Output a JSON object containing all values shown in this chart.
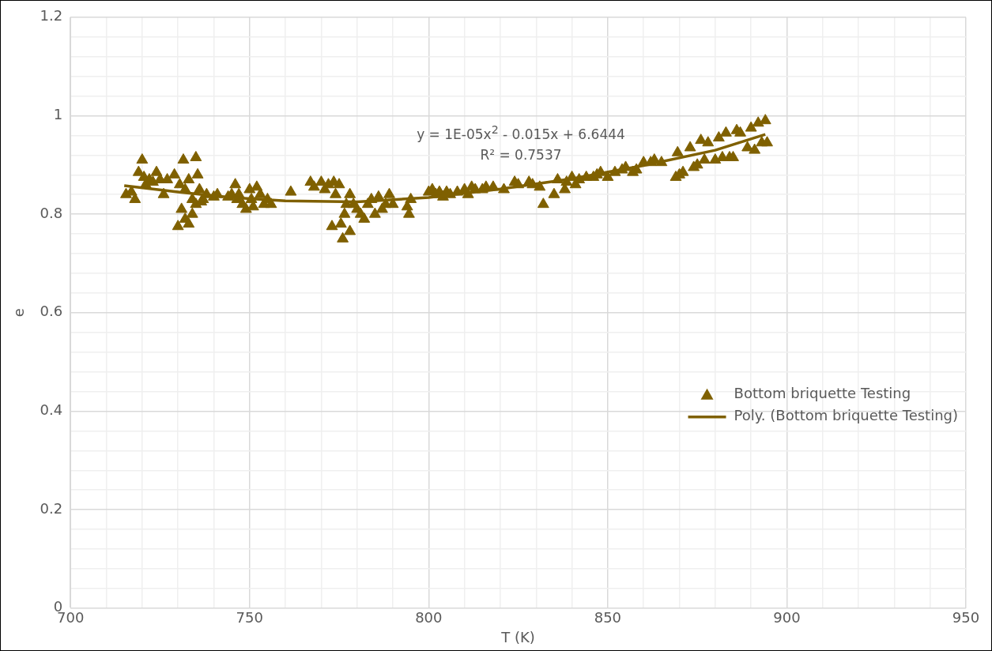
{
  "chart_data": {
    "type": "scatter",
    "xlabel": "T (K)",
    "ylabel": "e",
    "annotations": [
      "y = 1E-05x$^{2}$ - 0.015x + 6.6444",
      "R² = 0.7537"
    ],
    "xlim": [
      700,
      950
    ],
    "ylim": [
      0,
      1.2
    ],
    "xticks": [
      700,
      {
        "value": 710,
        "label": null
      },
      {
        "value": 720,
        "label": null
      },
      {
        "value": 730,
        "label": null
      },
      {
        "value": 740,
        "label": null
      },
      750,
      {
        "value": 760,
        "label": null
      },
      {
        "value": 770,
        "label": null
      },
      {
        "value": 780,
        "label": null
      },
      {
        "value": 790,
        "label": null
      },
      800,
      {
        "value": 810,
        "label": null
      },
      {
        "value": 820,
        "label": null
      },
      {
        "value": 830,
        "label": null
      },
      {
        "value": 840,
        "label": null
      },
      850,
      {
        "value": 860,
        "label": null
      },
      {
        "value": 870,
        "label": null
      },
      {
        "value": 880,
        "label": null
      },
      {
        "value": 890,
        "label": null
      },
      900,
      {
        "value": 910,
        "label": null
      },
      {
        "value": 920,
        "label": null
      },
      {
        "value": 930,
        "label": null
      },
      {
        "value": 940,
        "label": null
      },
      950
    ],
    "yticks": [
      0,
      {
        "value": 0.04,
        "label": null
      },
      {
        "value": 0.08,
        "label": null
      },
      {
        "value": 0.12,
        "label": null
      },
      {
        "value": 0.16,
        "label": null
      },
      0.2,
      {
        "value": 0.24,
        "label": null
      },
      {
        "value": 0.28,
        "label": null
      },
      {
        "value": 0.32,
        "label": null
      },
      {
        "value": 0.36,
        "label": null
      },
      0.4,
      {
        "value": 0.44,
        "label": null
      },
      {
        "value": 0.48,
        "label": null
      },
      {
        "value": 0.52,
        "label": null
      },
      {
        "value": 0.56,
        "label": null
      },
      0.6,
      {
        "value": 0.64,
        "label": null
      },
      {
        "value": 0.68,
        "label": null
      },
      {
        "value": 0.72,
        "label": null
      },
      {
        "value": 0.76,
        "label": null
      },
      0.8,
      {
        "value": 0.84,
        "label": null
      },
      {
        "value": 0.88,
        "label": null
      },
      {
        "value": 0.92,
        "label": null
      },
      {
        "value": 0.96,
        "label": null
      },
      1,
      {
        "value": 1.04,
        "label": null
      },
      {
        "value": 1.08,
        "label": null
      },
      {
        "value": 1.12,
        "label": null
      },
      {
        "value": 1.16,
        "label": null
      },
      1.2
    ],
    "grid": true,
    "legend": "right",
    "marker": "triangle",
    "series": [
      {
        "name": "Bottom briquette Testing",
        "color": "#7f6000",
        "x": [
          715.5,
          717,
          718,
          719,
          720,
          720.5,
          721,
          722,
          723,
          724,
          725,
          726,
          727,
          729,
          730,
          730.5,
          731,
          731.5,
          732,
          732,
          733,
          733,
          734,
          734,
          735,
          735,
          735.5,
          736,
          736.5,
          737,
          738,
          740,
          741,
          744,
          745,
          746,
          746.5,
          747,
          748,
          749,
          750,
          750.5,
          751,
          752,
          753,
          754,
          755,
          756,
          761.5,
          767,
          768,
          770,
          771,
          772,
          773,
          773.5,
          774,
          775,
          775.5,
          776,
          776.5,
          777,
          778,
          778,
          779,
          780,
          781,
          782,
          783,
          784,
          785,
          786,
          787,
          788,
          789,
          790,
          794,
          794.5,
          795,
          800,
          801,
          802,
          803,
          804,
          805,
          806,
          808,
          810,
          811,
          812,
          813,
          815,
          816,
          818,
          821,
          824,
          825,
          828,
          829,
          831,
          832,
          835,
          836,
          838,
          838.5,
          840,
          841,
          842,
          844,
          846,
          847,
          848,
          850,
          852,
          854,
          855,
          857,
          858,
          860,
          862,
          863,
          865,
          869,
          869.5,
          870,
          871,
          873,
          874,
          875,
          876,
          877,
          878,
          880,
          881,
          882,
          883,
          884,
          885,
          886,
          887,
          889,
          890,
          891,
          892,
          893,
          894,
          894.5
        ],
        "values": [
          0.84,
          0.845,
          0.83,
          0.885,
          0.91,
          0.875,
          0.86,
          0.87,
          0.865,
          0.885,
          0.87,
          0.84,
          0.87,
          0.88,
          0.775,
          0.86,
          0.81,
          0.91,
          0.79,
          0.85,
          0.78,
          0.87,
          0.8,
          0.83,
          0.915,
          0.82,
          0.88,
          0.85,
          0.825,
          0.83,
          0.84,
          0.835,
          0.84,
          0.835,
          0.84,
          0.86,
          0.83,
          0.84,
          0.82,
          0.81,
          0.85,
          0.83,
          0.815,
          0.855,
          0.84,
          0.82,
          0.83,
          0.82,
          0.845,
          0.865,
          0.855,
          0.865,
          0.85,
          0.86,
          0.775,
          0.865,
          0.84,
          0.86,
          0.78,
          0.75,
          0.8,
          0.82,
          0.765,
          0.84,
          0.82,
          0.81,
          0.8,
          0.79,
          0.82,
          0.83,
          0.8,
          0.835,
          0.81,
          0.82,
          0.84,
          0.82,
          0.815,
          0.8,
          0.83,
          0.845,
          0.85,
          0.84,
          0.845,
          0.835,
          0.845,
          0.84,
          0.845,
          0.85,
          0.84,
          0.855,
          0.85,
          0.85,
          0.855,
          0.855,
          0.85,
          0.865,
          0.86,
          0.865,
          0.86,
          0.855,
          0.82,
          0.84,
          0.87,
          0.85,
          0.865,
          0.875,
          0.86,
          0.87,
          0.875,
          0.875,
          0.88,
          0.885,
          0.875,
          0.885,
          0.89,
          0.895,
          0.885,
          0.89,
          0.905,
          0.905,
          0.91,
          0.905,
          0.875,
          0.925,
          0.88,
          0.885,
          0.935,
          0.895,
          0.9,
          0.95,
          0.91,
          0.945,
          0.91,
          0.955,
          0.915,
          0.965,
          0.915,
          0.915,
          0.97,
          0.965,
          0.935,
          0.975,
          0.93,
          0.985,
          0.945,
          0.99,
          0.945
        ]
      },
      {
        "name": "Poly. (Bottom briquette Testing)",
        "type": "line",
        "marker": "none",
        "line_style": "solid",
        "color": "#7f6000",
        "x": [
          715,
          730,
          745,
          760,
          780,
          800,
          820,
          840,
          860,
          880,
          894
        ],
        "values": [
          0.858,
          0.845,
          0.834,
          0.827,
          0.825,
          0.834,
          0.851,
          0.872,
          0.899,
          0.93,
          0.962
        ]
      }
    ]
  }
}
